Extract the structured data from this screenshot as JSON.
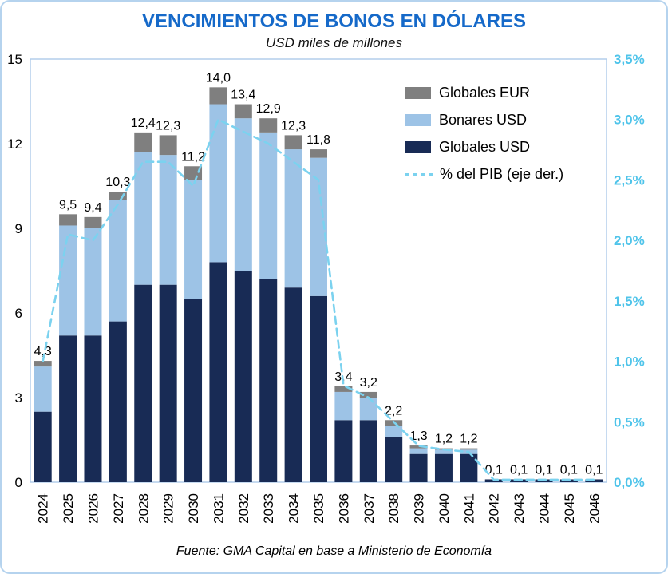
{
  "title": "VENCIMIENTOS DE BONOS EN DÓLARES",
  "subtitle": "USD miles de millones",
  "footer": "Fuente: GMA Capital en base a Ministerio de Economía",
  "colors": {
    "title": "#1569C9",
    "globales_usd": "#182B55",
    "bonares_usd": "#9DC3E6",
    "globales_eur": "#7F7F7F",
    "pib_line": "#7BD2EF",
    "right_axis": "#4FC4EA",
    "plot_border": "#AECBEA",
    "frame_border": "#B5D3EE"
  },
  "chart_data": {
    "type": "bar",
    "stacked": true,
    "title": "VENCIMIENTOS DE BONOS EN DÓLARES",
    "subtitle": "USD miles de millones",
    "categories": [
      "2024",
      "2025",
      "2026",
      "2027",
      "2028",
      "2029",
      "2030",
      "2031",
      "2032",
      "2033",
      "2034",
      "2035",
      "2036",
      "2037",
      "2038",
      "2039",
      "2040",
      "2041",
      "2042",
      "2043",
      "2044",
      "2045",
      "2046"
    ],
    "series": [
      {
        "name": "Globales USD",
        "color_key": "globales_usd",
        "values": [
          2.5,
          5.2,
          5.2,
          5.7,
          7.0,
          7.0,
          6.5,
          7.8,
          7.5,
          7.2,
          6.9,
          6.6,
          2.2,
          2.2,
          1.6,
          1.0,
          1.0,
          1.0,
          0.1,
          0.1,
          0.1,
          0.1,
          0.1
        ]
      },
      {
        "name": "Bonares USD",
        "color_key": "bonares_usd",
        "values": [
          1.6,
          3.9,
          3.8,
          4.3,
          4.7,
          4.6,
          4.2,
          5.6,
          5.4,
          5.2,
          4.9,
          4.9,
          1.0,
          0.8,
          0.4,
          0.2,
          0.15,
          0.15,
          0,
          0,
          0,
          0,
          0
        ]
      },
      {
        "name": "Globales EUR",
        "color_key": "globales_eur",
        "values": [
          0.2,
          0.4,
          0.4,
          0.3,
          0.7,
          0.7,
          0.5,
          0.6,
          0.5,
          0.5,
          0.5,
          0.3,
          0.2,
          0.2,
          0.2,
          0.1,
          0.05,
          0.05,
          0,
          0,
          0,
          0,
          0
        ]
      }
    ],
    "pib_line": {
      "name": "% del PIB (eje der.)",
      "axis": "right",
      "values": [
        1.0,
        2.05,
        2.0,
        2.3,
        2.65,
        2.65,
        2.45,
        3.0,
        2.9,
        2.8,
        2.65,
        2.5,
        0.8,
        0.7,
        0.5,
        0.3,
        0.27,
        0.25,
        0.02,
        0.02,
        0.02,
        0.02,
        0.02
      ]
    },
    "totals_labels": [
      "4,3",
      "9,5",
      "9,4",
      "10,3",
      "12,4",
      "12,3",
      "11,2",
      "14,0",
      "13,4",
      "12,9",
      "12,3",
      "11,8",
      "3,4",
      "3,2",
      "2,2",
      "1,3",
      "1,2",
      "1,2",
      "0,1",
      "0,1",
      "0,1",
      "0,1",
      "0,1"
    ],
    "left_axis": {
      "min": 0,
      "max": 15,
      "ticks": [
        0,
        3,
        6,
        9,
        12,
        15
      ]
    },
    "right_axis": {
      "min": 0,
      "max": 3.5,
      "tick_labels": [
        "0,0%",
        "0,5%",
        "1,0%",
        "1,5%",
        "2,0%",
        "2,5%",
        "3,0%",
        "3,5%"
      ]
    },
    "legend": [
      "Globales EUR",
      "Bonares USD",
      "Globales USD",
      "% del PIB (eje der.)"
    ],
    "legend_position": "upper-right",
    "grid": false
  }
}
